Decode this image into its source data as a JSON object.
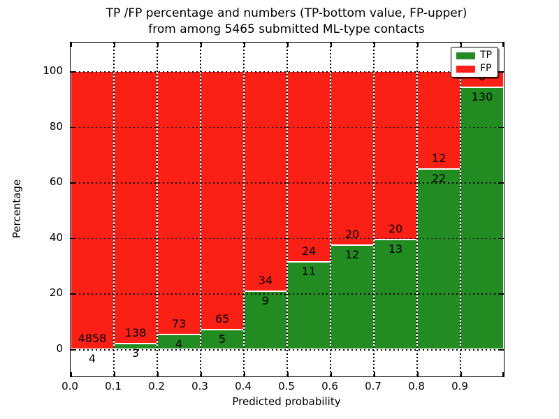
{
  "title": {
    "line1": "TP /FP percentage and numbers (TP-bottom value, FP-upper)",
    "line2": "from among 5465 submitted ML-type contacts"
  },
  "axes": {
    "xlabel": "Predicted probability",
    "ylabel": "Percentage"
  },
  "legend": {
    "position": "upper right",
    "entries": [
      {
        "label": "TP",
        "color": "#228b22"
      },
      {
        "label": "FP",
        "color": "#fb2015"
      }
    ]
  },
  "chart_data": {
    "type": "bar",
    "stacked": true,
    "normalized_to_percent": true,
    "title": "TP /FP percentage and numbers (TP-bottom value, FP-upper) from among 5465 submitted ML-type contacts",
    "total_contacts": 5465,
    "xlabel": "Predicted probability",
    "ylabel": "Percentage",
    "x_bin_edges": [
      0.0,
      0.1,
      0.2,
      0.3,
      0.4,
      0.5,
      0.6,
      0.7,
      0.8,
      0.9,
      1.0
    ],
    "x_ticks": [
      "0.0",
      "0.1",
      "0.2",
      "0.3",
      "0.4",
      "0.5",
      "0.6",
      "0.7",
      "0.8",
      "0.9"
    ],
    "y_ticks": [
      0,
      20,
      40,
      60,
      80,
      100
    ],
    "ylim": [
      -10,
      110
    ],
    "grid": "dotted",
    "legend_position": "upper right",
    "series": [
      {
        "name": "TP",
        "color": "#228b22",
        "counts": [
          4,
          3,
          4,
          5,
          9,
          11,
          12,
          13,
          22,
          130
        ]
      },
      {
        "name": "FP",
        "color": "#fb2015",
        "counts": [
          4858,
          138,
          73,
          65,
          34,
          24,
          20,
          20,
          12,
          8
        ]
      }
    ],
    "tp_percent": [
      0.08,
      2.13,
      5.19,
      7.14,
      20.93,
      31.43,
      37.5,
      39.39,
      64.71,
      94.2
    ],
    "fp_percent": [
      99.92,
      97.87,
      94.81,
      92.86,
      79.07,
      68.57,
      62.5,
      60.61,
      35.29,
      5.8
    ]
  }
}
